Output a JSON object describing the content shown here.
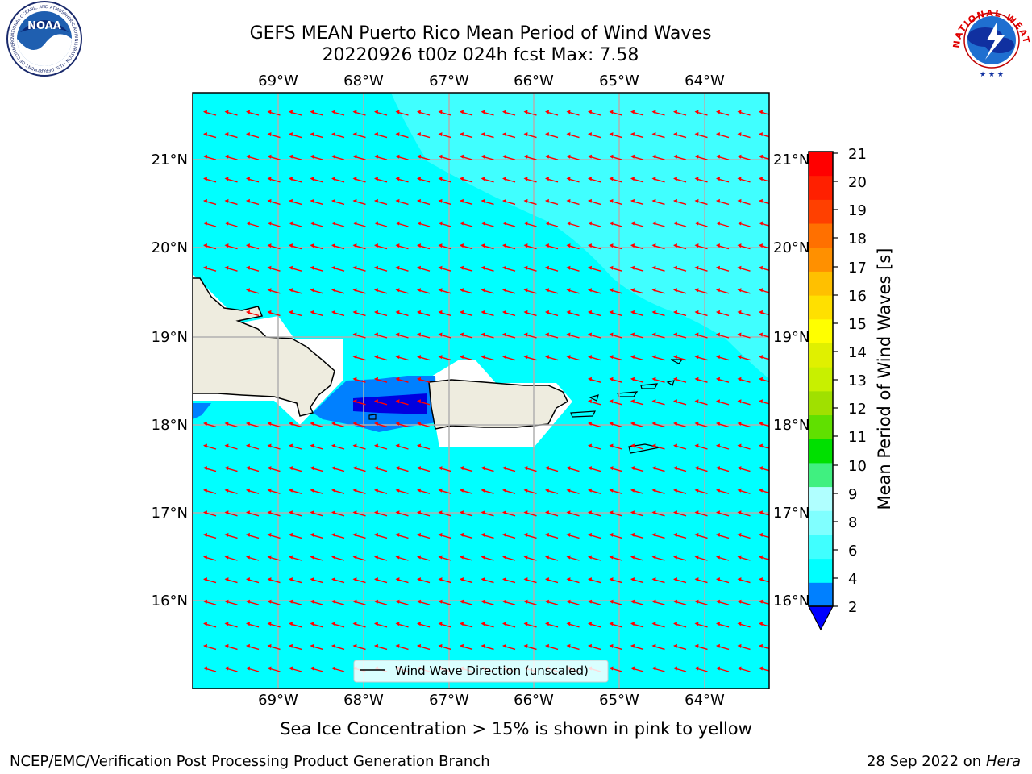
{
  "header": {
    "title_line1": "GEFS MEAN Puerto Rico Mean Period of Wind Waves",
    "title_line2": "20220926 t00z 024h fcst   Max: 7.58"
  },
  "logos": {
    "noaa_text": "NOAA",
    "noaa_ring": "NATIONAL OCEANIC AND ATMOSPHERIC ADMINISTRATION · U.S. DEPARTMENT OF COMMERCE",
    "nws_ring": "NATIONAL WEATHER SERVICE"
  },
  "map": {
    "lon_labels": [
      "69°W",
      "68°W",
      "67°W",
      "66°W",
      "65°W",
      "64°W"
    ],
    "lat_labels": [
      "21°N",
      "20°N",
      "19°N",
      "18°N",
      "17°N",
      "16°N"
    ],
    "legend_label": "Wind Wave Direction (unscaled)",
    "colors": {
      "ocean": "#00ffff",
      "ocean_light": "#40ffff",
      "land": "#eeecdf",
      "mask": "#ffffff",
      "shallow": "#0080ff",
      "deep": "#0000f0",
      "arrow": "#ff0000",
      "grid": "#b0b0b0"
    }
  },
  "colorbar": {
    "label": "Mean Period of Wind Waves [s]",
    "ticks": [
      "2",
      "4",
      "6",
      "8",
      "9",
      "10",
      "11",
      "12",
      "13",
      "14",
      "15",
      "16",
      "17",
      "18",
      "19",
      "20",
      "21"
    ],
    "colors": [
      "#0080ff",
      "#00ffff",
      "#40ffff",
      "#80ffff",
      "#b0ffff",
      "#40f080",
      "#00e000",
      "#60e000",
      "#a0e000",
      "#c8f000",
      "#e0f000",
      "#ffff00",
      "#ffe000",
      "#ffc000",
      "#ff9000",
      "#ff7000",
      "#ff4000",
      "#ff2000",
      "#ff0000"
    ],
    "extend_color": "#0000ff"
  },
  "footer": {
    "sea_ice": "Sea Ice Concentration > 15% is shown in pink to yellow",
    "branch": "NCEP/EMC/Verification Post Processing Product Generation Branch",
    "date": "28 Sep 2022 on",
    "machine": "Hera"
  }
}
